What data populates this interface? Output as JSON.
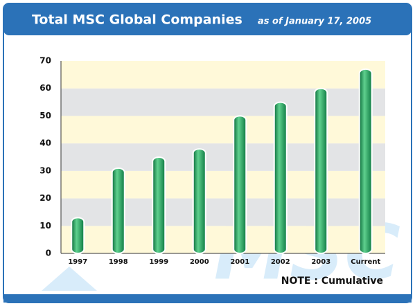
{
  "chart_data": {
    "type": "bar",
    "title": "Total MSC Global Companies",
    "subtitle": "as of January 17, 2005",
    "note": "NOTE : Cumulative",
    "watermark": "MSC",
    "categories": [
      "1997",
      "1998",
      "1999",
      "2000",
      "2001",
      "2002",
      "2003",
      "Current"
    ],
    "values": [
      13,
      31,
      35,
      38,
      50,
      55,
      60,
      67
    ],
    "color": "#1e9a5a",
    "ylim": [
      0,
      70
    ],
    "yticks": [
      0,
      10,
      20,
      30,
      40,
      50,
      60,
      70
    ],
    "band_colors": [
      "#fff9d9",
      "#e3e4e6"
    ]
  }
}
